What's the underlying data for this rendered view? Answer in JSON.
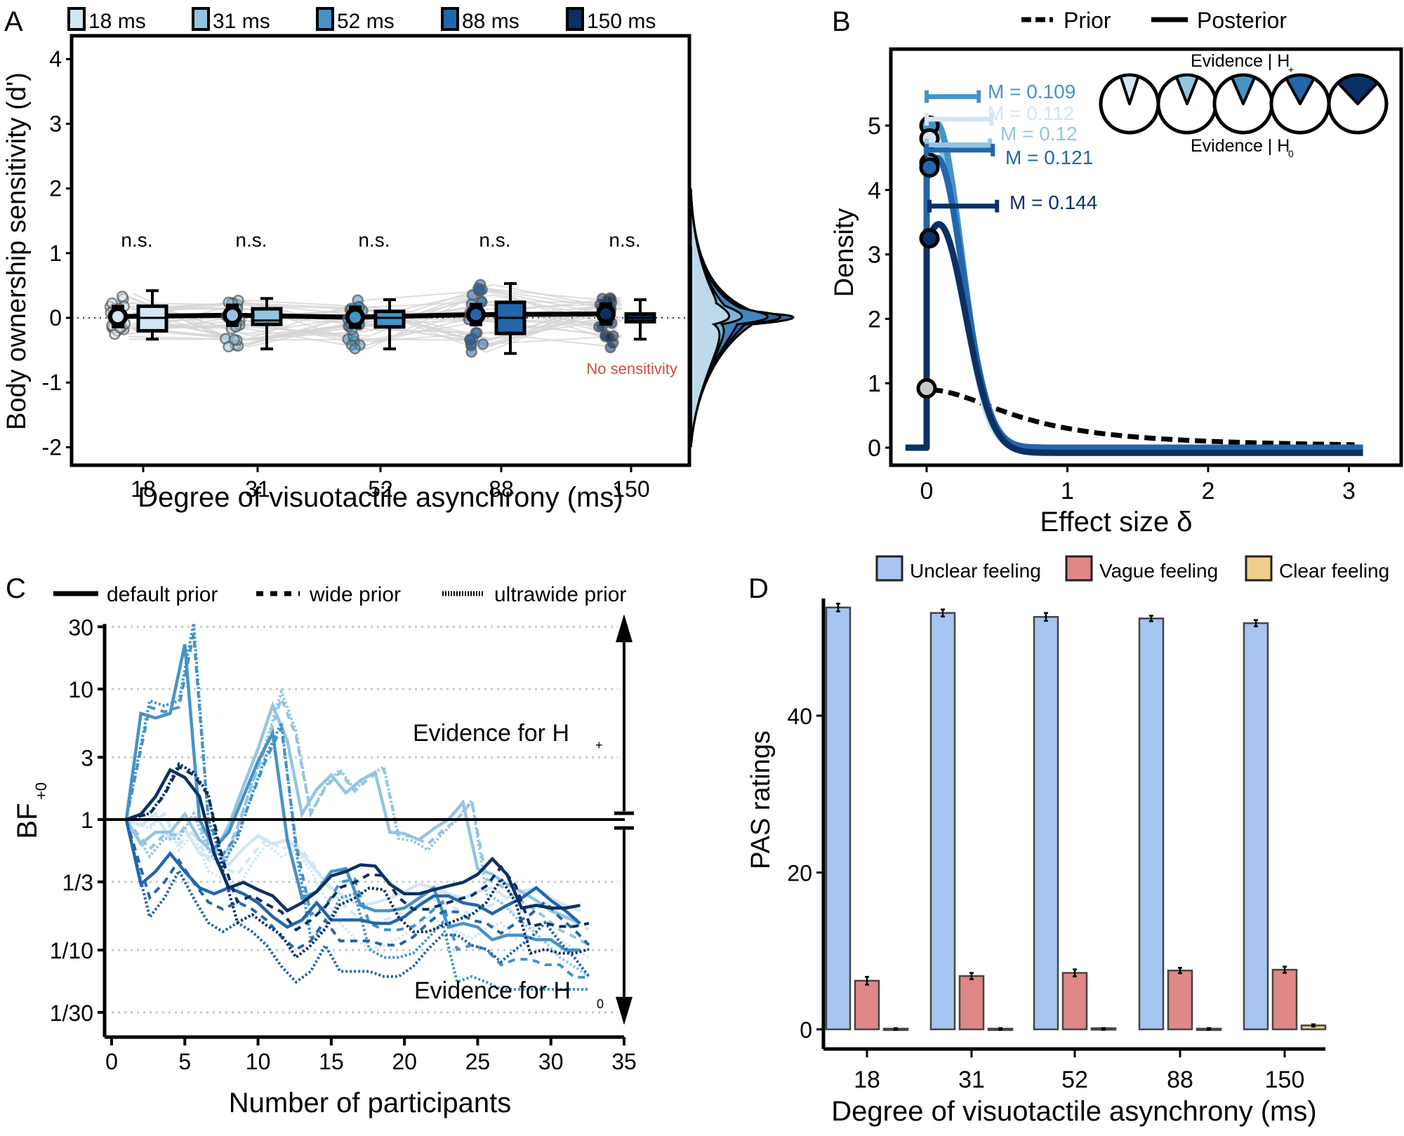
{
  "colors": {
    "c18": "#d3e6f3",
    "c31": "#93c5e2",
    "c52": "#4593c7",
    "c88": "#2366ad",
    "c150": "#0b3164",
    "unclear": "#a6c5f1",
    "vague": "#e08787",
    "clear": "#f0cd8c",
    "red_note": "#cc4c45",
    "grid": "#c8c8c8"
  },
  "chart_data": [
    {
      "panel": "A",
      "type": "box",
      "panel_label": "A",
      "legend": [
        "18 ms",
        "31 ms",
        "52 ms",
        "88 ms",
        "150 ms"
      ],
      "legend_placement": "top",
      "categories": [
        "18",
        "31",
        "52",
        "88",
        "150"
      ],
      "xlabel": "Degree of visuotactile asynchrony (ms)",
      "ylabel": "Body ownership sensitivity (d')",
      "ylim": [
        -2.3,
        4.3
      ],
      "yticks": [
        "4",
        "3",
        "2",
        "1",
        "0",
        "-1",
        "-2"
      ],
      "ytick_values": [
        4,
        3,
        2,
        1,
        0,
        -1,
        -2
      ],
      "means": [
        0.02,
        0.04,
        0.01,
        0.05,
        0.06
      ],
      "boxes": [
        {
          "min": -0.33,
          "q1": -0.2,
          "median": 0.0,
          "q3": 0.18,
          "max": 0.42
        },
        {
          "min": -0.48,
          "q1": -0.1,
          "median": -0.04,
          "q3": 0.14,
          "max": 0.3
        },
        {
          "min": -0.48,
          "q1": -0.14,
          "median": 0.0,
          "q3": 0.1,
          "max": 0.28
        },
        {
          "min": -0.55,
          "q1": -0.24,
          "median": 0.0,
          "q3": 0.24,
          "max": 0.53
        },
        {
          "min": -0.33,
          "q1": -0.06,
          "median": 0.0,
          "q3": 0.06,
          "max": 0.28
        }
      ],
      "point_spread": [
        [
          -0.33,
          0.38
        ],
        [
          -0.48,
          0.3
        ],
        [
          -0.48,
          0.3
        ],
        [
          -0.55,
          0.55
        ],
        [
          -0.48,
          0.32
        ]
      ],
      "annotations": [
        "n.s.",
        "n.s.",
        "n.s.",
        "n.s.",
        "n.s."
      ],
      "note": "No sensitivity"
    },
    {
      "panel": "B",
      "type": "line",
      "panel_label": "B",
      "legend": [
        "Prior",
        "Posterior"
      ],
      "legend_placement": "top",
      "xlabel": "Effect size δ",
      "ylabel": "Density",
      "xlim": [
        -0.15,
        3.3
      ],
      "ylim": [
        -0.25,
        5.9
      ],
      "xticks": [
        "0",
        "1",
        "2",
        "3"
      ],
      "xtick_values": [
        0,
        1,
        2,
        3
      ],
      "yticks": [
        "0",
        "1",
        "2",
        "3",
        "4",
        "5"
      ],
      "ytick_values": [
        0,
        1,
        2,
        3,
        4,
        5
      ],
      "prior_density_at_zero": 0.92,
      "posteriors": [
        {
          "name": "18 ms",
          "mean_label": "M = 0.112",
          "median": 0.112,
          "ci": [
            0.0,
            0.46
          ],
          "peak": 4.9,
          "density_at_zero": 4.8
        },
        {
          "name": "31 ms",
          "mean_label": "M = 0.12",
          "median": 0.12,
          "ci": [
            0.0,
            0.45
          ],
          "peak": 4.7,
          "density_at_zero": 4.42
        },
        {
          "name": "52 ms",
          "mean_label": "M = 0.109",
          "median": 0.109,
          "ci": [
            0.0,
            0.37
          ],
          "peak": 5.05,
          "density_at_zero": 5.0
        },
        {
          "name": "88 ms",
          "mean_label": "M = 0.121",
          "median": 0.121,
          "ci": [
            0.0,
            0.47
          ],
          "peak": 4.5,
          "density_at_zero": 4.35
        },
        {
          "name": "150 ms",
          "mean_label": "M = 0.144",
          "median": 0.144,
          "ci": [
            0.02,
            0.5
          ],
          "peak": 3.55,
          "density_at_zero": 3.25
        }
      ],
      "pie_caption_top": "Evidence | H",
      "pie_caption_top_sub": "+",
      "pie_caption_bottom": "Evidence | H",
      "pie_caption_bottom_sub": "0",
      "pie_fractions_h_plus": [
        0.1,
        0.12,
        0.13,
        0.16,
        0.24
      ]
    },
    {
      "panel": "C",
      "type": "line",
      "panel_label": "C",
      "legend": [
        "default prior",
        "wide prior",
        "ultrawide prior"
      ],
      "legend_placement": "top",
      "xlabel": "Number of participants",
      "ylabel": "BF",
      "ylabel_sub": "+0",
      "xlim": [
        0,
        35
      ],
      "xticks": [
        "0",
        "5",
        "10",
        "15",
        "20",
        "25",
        "30",
        "35"
      ],
      "xtick_values": [
        0,
        5,
        10,
        15,
        20,
        25,
        30,
        35
      ],
      "yscale": "log",
      "yticks": [
        "30",
        "10",
        "3",
        "1",
        "1/3",
        "1/10",
        "1/30"
      ],
      "ytick_values": [
        30,
        10,
        3,
        1,
        0.3333,
        0.1,
        0.0333
      ],
      "annotation_top": "Evidence for H",
      "annotation_top_sub": "+",
      "annotation_bottom": "Evidence for H",
      "annotation_bottom_sub": "0",
      "series": [
        {
          "name": "18 ms default",
          "style": "solid",
          "color": "c18",
          "x": [
            1,
            2,
            3,
            4,
            5,
            6,
            7,
            8,
            9,
            10,
            11,
            12,
            13,
            14,
            15,
            16,
            17,
            18,
            19,
            20,
            21,
            22,
            23,
            24,
            25,
            26,
            27,
            28,
            29,
            30,
            31,
            32
          ],
          "values": [
            1,
            0.9,
            1.1,
            0.7,
            0.85,
            0.55,
            0.5,
            0.45,
            0.6,
            0.75,
            0.65,
            0.7,
            0.55,
            0.4,
            0.3,
            0.25,
            0.22,
            0.23,
            0.25,
            0.28,
            0.32,
            0.3,
            0.27,
            0.25,
            0.28,
            0.3,
            0.25,
            0.28,
            0.3,
            0.25,
            0.22,
            0.2
          ]
        },
        {
          "name": "31 ms default",
          "style": "solid",
          "color": "c31",
          "x": [
            1,
            2,
            3,
            4,
            5,
            6,
            7,
            8,
            9,
            10,
            11,
            12,
            13,
            14,
            15,
            16,
            17,
            18,
            19,
            20,
            21,
            22,
            23,
            24,
            25,
            26,
            27,
            28,
            29,
            30,
            31,
            32
          ],
          "values": [
            1,
            0.65,
            0.8,
            0.8,
            1.1,
            0.7,
            0.55,
            0.9,
            1.8,
            3.5,
            7.5,
            4.0,
            1.1,
            1.7,
            2.2,
            1.6,
            2.0,
            2.3,
            0.8,
            0.78,
            0.7,
            0.85,
            1.0,
            1.35,
            0.42,
            0.38,
            0.32,
            0.28,
            0.24,
            0.2,
            0.18,
            0.16
          ]
        },
        {
          "name": "52 ms default",
          "style": "solid",
          "color": "c52",
          "x": [
            1,
            2,
            3,
            4,
            5,
            6,
            7,
            8,
            9,
            10,
            11,
            12,
            13,
            14,
            15,
            16,
            17,
            18,
            19,
            20,
            21,
            22,
            23,
            24,
            25,
            26,
            27,
            28,
            29,
            30,
            31,
            32
          ],
          "values": [
            1,
            6.5,
            6.0,
            6.5,
            22,
            1.0,
            0.6,
            0.8,
            1.5,
            2.8,
            4.6,
            0.7,
            0.25,
            0.28,
            0.4,
            0.42,
            0.22,
            0.2,
            0.2,
            0.21,
            0.25,
            0.3,
            0.15,
            0.16,
            0.15,
            0.12,
            0.13,
            0.13,
            0.12,
            0.12,
            0.1,
            0.1
          ]
        },
        {
          "name": "88 ms default",
          "style": "solid",
          "color": "c88",
          "x": [
            1,
            2,
            3,
            4,
            5,
            6,
            7,
            8,
            9,
            10,
            11,
            12,
            13,
            14,
            15,
            16,
            17,
            18,
            19,
            20,
            21,
            22,
            23,
            24,
            25,
            26,
            27,
            28,
            29,
            30,
            31,
            32
          ],
          "values": [
            1,
            0.32,
            0.4,
            0.55,
            0.4,
            0.3,
            0.27,
            0.3,
            0.27,
            0.23,
            0.18,
            0.15,
            0.17,
            0.23,
            0.17,
            0.17,
            0.17,
            0.16,
            0.16,
            0.18,
            0.22,
            0.26,
            0.26,
            0.23,
            0.22,
            0.19,
            0.22,
            0.25,
            0.3,
            0.24,
            0.2,
            0.16
          ]
        },
        {
          "name": "150 ms default",
          "style": "solid",
          "color": "c150",
          "x": [
            1,
            2,
            3,
            4,
            5,
            6,
            7,
            8,
            9,
            10,
            11,
            12,
            13,
            14,
            15,
            16,
            17,
            18,
            19,
            20,
            21,
            22,
            23,
            24,
            25,
            26,
            27,
            28,
            29,
            30,
            31,
            32
          ],
          "values": [
            1,
            1.1,
            1.5,
            2.4,
            2.1,
            1.5,
            0.55,
            0.3,
            0.33,
            0.29,
            0.26,
            0.2,
            0.23,
            0.28,
            0.37,
            0.4,
            0.45,
            0.44,
            0.32,
            0.27,
            0.27,
            0.29,
            0.31,
            0.33,
            0.38,
            0.5,
            0.38,
            0.21,
            0.22,
            0.21,
            0.21,
            0.22
          ]
        }
      ]
    },
    {
      "panel": "D",
      "type": "bar",
      "panel_label": "D",
      "legend": [
        "Unclear feeling",
        "Vague feeling",
        "Clear feeling"
      ],
      "legend_placement": "top",
      "categories": [
        "18",
        "31",
        "52",
        "88",
        "150"
      ],
      "xlabel": "Degree of visuotactile asynchrony (ms)",
      "ylabel": "PAS ratings",
      "ylim": [
        -2.5,
        56
      ],
      "yticks": [
        "0",
        "20",
        "40"
      ],
      "ytick_values": [
        0,
        20,
        40
      ],
      "series": [
        {
          "name": "Unclear feeling",
          "values": [
            53.8,
            53.1,
            52.6,
            52.4,
            51.8
          ],
          "error": [
            0.5,
            0.45,
            0.5,
            0.35,
            0.4
          ]
        },
        {
          "name": "Vague feeling",
          "values": [
            6.2,
            6.8,
            7.2,
            7.5,
            7.6
          ],
          "error": [
            0.5,
            0.4,
            0.45,
            0.35,
            0.4
          ]
        },
        {
          "name": "Clear feeling",
          "values": [
            0.0,
            0.0,
            0.05,
            0.0,
            0.5
          ],
          "error": [
            0.0,
            0.0,
            0.0,
            0.0,
            0.15
          ]
        }
      ]
    }
  ]
}
